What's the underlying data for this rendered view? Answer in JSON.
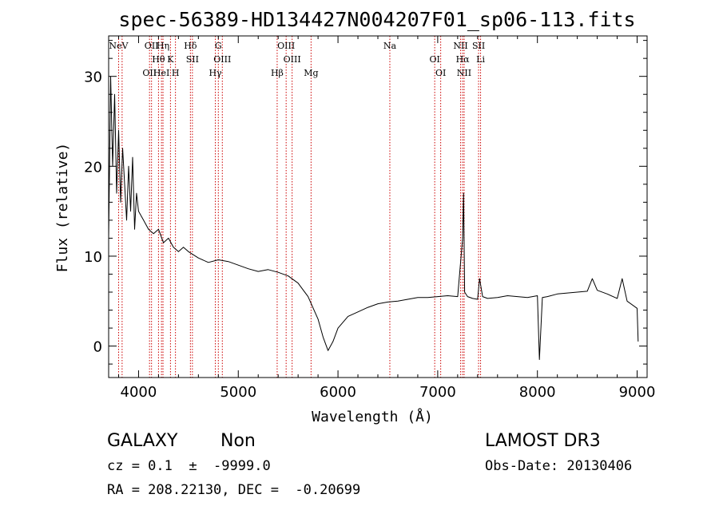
{
  "chart_data": {
    "type": "line",
    "title": "spec-56389-HD134427N004207F01_sp06-113.fits",
    "xlabel": "Wavelength (Å)",
    "ylabel": "Flux (relative)",
    "xlim": [
      3700,
      9100
    ],
    "ylim": [
      -3.5,
      34.5
    ],
    "xticks": [
      4000,
      5000,
      6000,
      7000,
      8000,
      9000
    ],
    "yticks": [
      0,
      10,
      20,
      30
    ],
    "grid": false,
    "line_color": "#000000",
    "marker_color": "#cc0000",
    "series": [
      {
        "x": [
          3700,
          3720,
          3740,
          3760,
          3780,
          3800,
          3820,
          3840,
          3860,
          3880,
          3900,
          3920,
          3940,
          3960,
          3980,
          4000,
          4050,
          4100,
          4150,
          4200,
          4250,
          4300,
          4350,
          4400,
          4450,
          4500,
          4600,
          4700,
          4800,
          4900,
          5000,
          5100,
          5200,
          5300,
          5400,
          5500,
          5600,
          5700,
          5800,
          5850,
          5900,
          5950,
          6000,
          6100,
          6200,
          6300,
          6400,
          6500,
          6600,
          6700,
          6800,
          6900,
          7000,
          7100,
          7200,
          7250,
          7260,
          7270,
          7300,
          7350,
          7400,
          7420,
          7450,
          7500,
          7600,
          7700,
          7800,
          7900,
          8000,
          8020,
          8050,
          8100,
          8200,
          8300,
          8400,
          8500,
          8550,
          8600,
          8700,
          8800,
          8850,
          8900,
          9000,
          9010
        ],
        "y": [
          12,
          30,
          20,
          28,
          17,
          24,
          16,
          22,
          18,
          14,
          20,
          15,
          21,
          13,
          17,
          15,
          14,
          13,
          12.5,
          13,
          11.5,
          12,
          11,
          10.5,
          11,
          10.5,
          9.8,
          9.3,
          9.6,
          9.4,
          9,
          8.6,
          8.3,
          8.5,
          8.2,
          7.8,
          7,
          5.5,
          3,
          1,
          -0.5,
          0.5,
          2,
          3.3,
          3.8,
          4.3,
          4.7,
          4.9,
          5,
          5.2,
          5.4,
          5.4,
          5.5,
          5.6,
          5.5,
          12,
          17,
          6,
          5.5,
          5.3,
          5.2,
          7.5,
          5.5,
          5.3,
          5.4,
          5.6,
          5.5,
          5.4,
          5.6,
          -1.5,
          5.4,
          5.5,
          5.8,
          5.9,
          6,
          6.1,
          7.5,
          6.2,
          5.8,
          5.3,
          7.5,
          5,
          4.2,
          0.5
        ]
      }
    ],
    "line_markers": [
      {
        "x": 3800,
        "labels": [
          "NeV"
        ]
      },
      {
        "x": 3835,
        "labels": []
      },
      {
        "x": 4110,
        "labels": [
          "OII"
        ]
      },
      {
        "x": 4130,
        "labels": [
          "OII"
        ]
      },
      {
        "x": 4200,
        "labels": [
          "Hθ"
        ]
      },
      {
        "x": 4230,
        "labels": [
          "HeI"
        ]
      },
      {
        "x": 4245,
        "labels": [
          "Hη"
        ]
      },
      {
        "x": 4320,
        "labels": [
          "K"
        ]
      },
      {
        "x": 4370,
        "labels": [
          "H"
        ]
      },
      {
        "x": 4520,
        "labels": [
          "Hδ"
        ]
      },
      {
        "x": 4540,
        "labels": [
          "SII"
        ]
      },
      {
        "x": 4770,
        "labels": [
          "Hγ"
        ]
      },
      {
        "x": 4800,
        "labels": [
          "G"
        ]
      },
      {
        "x": 4840,
        "labels": [
          "OIII"
        ]
      },
      {
        "x": 5390,
        "labels": [
          "Hβ"
        ]
      },
      {
        "x": 5480,
        "labels": [
          "OIII"
        ]
      },
      {
        "x": 5540,
        "labels": [
          "OIII"
        ]
      },
      {
        "x": 5730,
        "labels": [
          "Mg"
        ]
      },
      {
        "x": 6520,
        "labels": [
          "Na"
        ]
      },
      {
        "x": 6970,
        "labels": [
          "OI"
        ]
      },
      {
        "x": 7030,
        "labels": [
          "OI"
        ]
      },
      {
        "x": 7230,
        "labels": [
          "NII"
        ]
      },
      {
        "x": 7250,
        "labels": [
          "Hα"
        ]
      },
      {
        "x": 7265,
        "labels": [
          "NII"
        ]
      },
      {
        "x": 7410,
        "labels": [
          "SII"
        ]
      },
      {
        "x": 7430,
        "labels": [
          "Li"
        ]
      }
    ],
    "annotations": {
      "object_class": "GALAXY",
      "subclass": "Non",
      "release": "LAMOST DR3",
      "redshift_text": "cz = 0.1  ±  -9999.0",
      "obs_date_text": "Obs-Date: 20130406",
      "coords_text": "RA = 208.22130, DEC =  -0.20699"
    }
  }
}
